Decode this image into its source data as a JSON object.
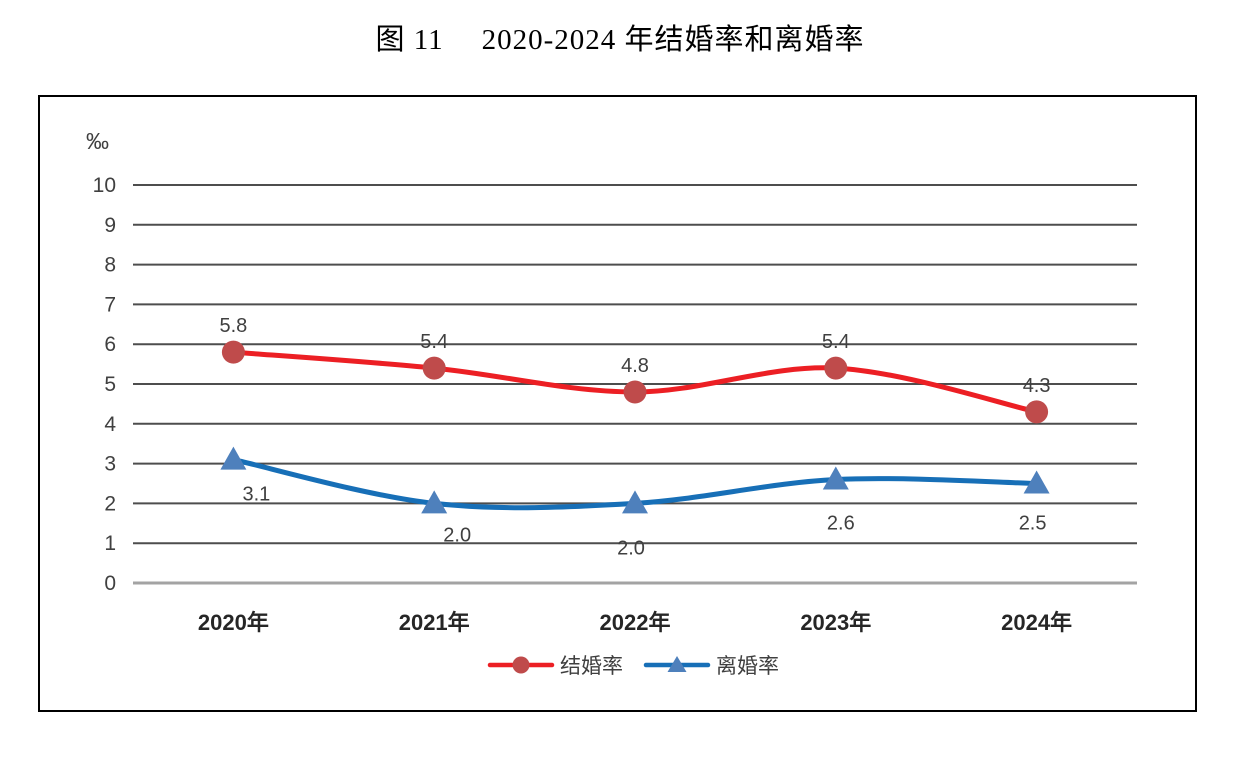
{
  "title": {
    "figure_no": "图 11",
    "text": "2020-2024 年结婚率和离婚率"
  },
  "chart_data": {
    "type": "line",
    "title": "图 11  2020-2024 年结婚率和离婚率",
    "unit_label": "‰",
    "categories": [
      "2020年",
      "2021年",
      "2022年",
      "2023年",
      "2024年"
    ],
    "series": [
      {
        "name": "结婚率",
        "values": [
          5.8,
          5.4,
          4.8,
          5.4,
          4.3
        ],
        "value_labels": [
          "5.8",
          "5.4",
          "4.8",
          "5.4",
          "4.3"
        ],
        "line_color": "#ec1f24",
        "marker_color": "#bf4b4b",
        "marker": "circle",
        "label_position": "above"
      },
      {
        "name": "离婚率",
        "values": [
          3.1,
          2.0,
          2.0,
          2.6,
          2.5
        ],
        "value_labels": [
          "3.1",
          "2.0",
          "2.0",
          "2.6",
          "2.5"
        ],
        "line_color": "#176fb7",
        "marker_color": "#4e80bc",
        "marker": "triangle",
        "label_position": "below"
      }
    ],
    "ylim": [
      0,
      10
    ],
    "ytick_step": 1,
    "yticks": [
      "0",
      "1",
      "2",
      "3",
      "4",
      "5",
      "6",
      "7",
      "8",
      "9",
      "10"
    ],
    "grid": true,
    "smooth": true,
    "legend_position": "bottom-center",
    "colors": {
      "gridline": "#4d4d4d",
      "zero_line": "#a3a3a3",
      "tick_label": "#404040",
      "data_label": "#404040",
      "axis_label": "#262626",
      "legend_text": "#3f3f3f"
    },
    "label_offsets": [
      [
        [
          0,
          -20
        ],
        [
          0,
          -20
        ],
        [
          0,
          -20
        ],
        [
          0,
          -20
        ],
        [
          0,
          -20
        ]
      ],
      [
        [
          23,
          41
        ],
        [
          23,
          38
        ],
        [
          -4,
          51
        ],
        [
          5,
          50
        ],
        [
          -4,
          46
        ]
      ]
    ]
  }
}
